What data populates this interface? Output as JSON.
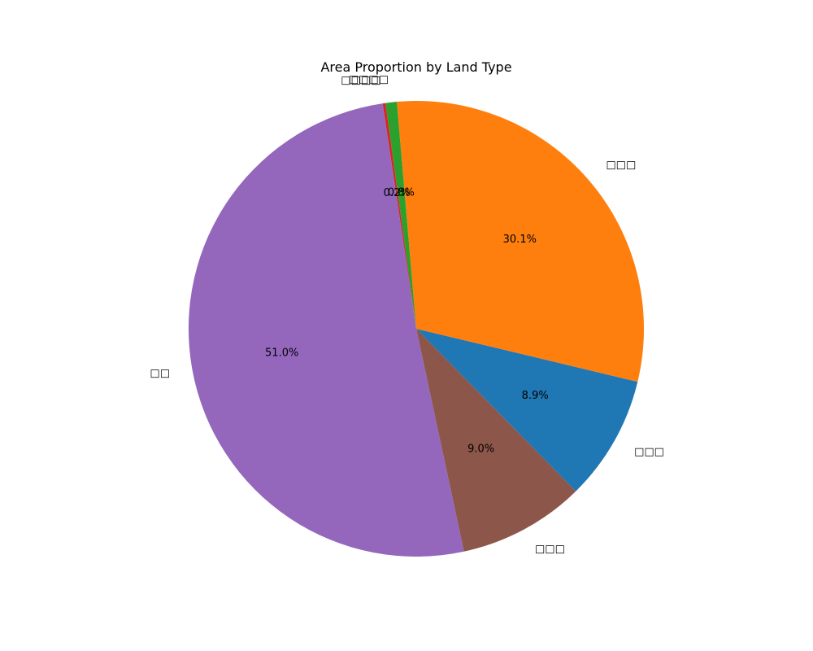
{
  "chart_data": {
    "type": "pie",
    "title": "Area Proportion by Land Type",
    "start_angle_deg": -45.5,
    "direction": "counterclockwise",
    "slices": [
      {
        "label": "□□□",
        "value": 8.9,
        "pct_label": "8.9%",
        "color": "#1f77b4"
      },
      {
        "label": "□□□",
        "value": 30.1,
        "pct_label": "30.1%",
        "color": "#ff7f0e"
      },
      {
        "label": "□□□□",
        "value": 0.8,
        "pct_label": "0.8%",
        "color": "#2ca02c"
      },
      {
        "label": "□□□□",
        "value": 0.2,
        "pct_label": "0.2%",
        "color": "#d62728"
      },
      {
        "label": "□□",
        "value": 51.0,
        "pct_label": "51.0%",
        "color": "#9467bd"
      },
      {
        "label": "□□□",
        "value": 9.0,
        "pct_label": "9.0%",
        "color": "#8c564b"
      }
    ]
  }
}
